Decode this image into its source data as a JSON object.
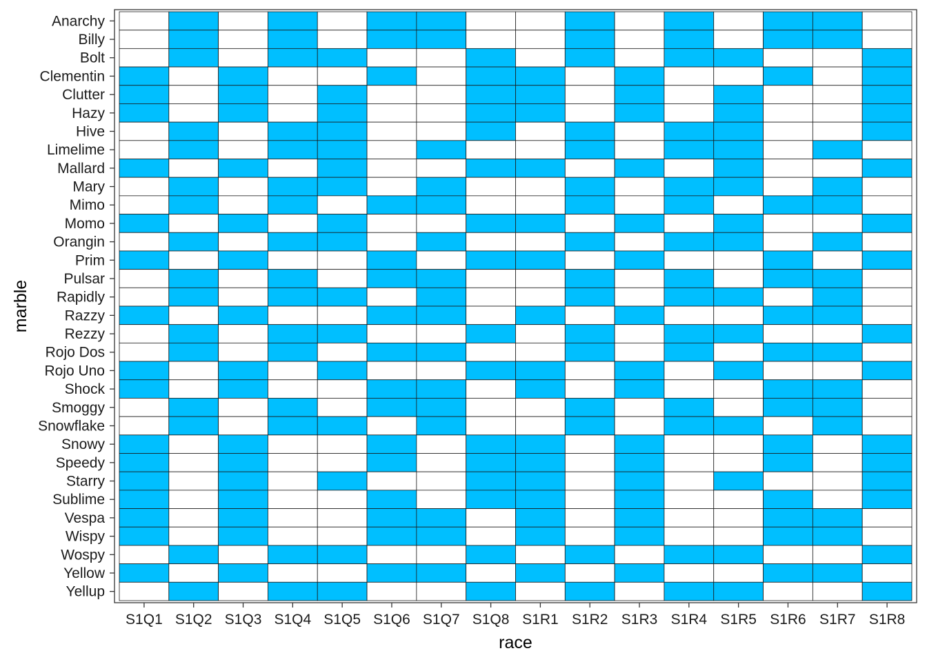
{
  "chart_data": {
    "type": "heatmap",
    "xlabel": "race",
    "ylabel": "marble",
    "colors": {
      "filled": "#00BFFF",
      "empty": "#FFFFFF",
      "cell_border": "#1a1a1a",
      "panel_border": "#333333"
    },
    "value_legend": {
      "1": "filled",
      "0": "empty"
    },
    "x_categories": [
      "S1Q1",
      "S1Q2",
      "S1Q3",
      "S1Q4",
      "S1Q5",
      "S1Q6",
      "S1Q7",
      "S1Q8",
      "S1R1",
      "S1R2",
      "S1R3",
      "S1R4",
      "S1R5",
      "S1R6",
      "S1R7",
      "S1R8"
    ],
    "y_categories": [
      "Anarchy",
      "Billy",
      "Bolt",
      "Clementin",
      "Clutter",
      "Hazy",
      "Hive",
      "Limelime",
      "Mallard",
      "Mary",
      "Mimo",
      "Momo",
      "Orangin",
      "Prim",
      "Pulsar",
      "Rapidly",
      "Razzy",
      "Rezzy",
      "Rojo Dos",
      "Rojo Uno",
      "Shock",
      "Smoggy",
      "Snowflake",
      "Snowy",
      "Speedy",
      "Starry",
      "Sublime",
      "Vespa",
      "Wispy",
      "Wospy",
      "Yellow",
      "Yellup"
    ],
    "values": [
      [
        0,
        1,
        0,
        1,
        0,
        1,
        1,
        0,
        0,
        1,
        0,
        1,
        0,
        1,
        1,
        0
      ],
      [
        0,
        1,
        0,
        1,
        0,
        1,
        1,
        0,
        0,
        1,
        0,
        1,
        0,
        1,
        1,
        0
      ],
      [
        0,
        1,
        0,
        1,
        1,
        0,
        0,
        1,
        0,
        1,
        0,
        1,
        1,
        0,
        0,
        1
      ],
      [
        1,
        0,
        1,
        0,
        0,
        1,
        0,
        1,
        1,
        0,
        1,
        0,
        0,
        1,
        0,
        1
      ],
      [
        1,
        0,
        1,
        0,
        1,
        0,
        0,
        1,
        1,
        0,
        1,
        0,
        1,
        0,
        0,
        1
      ],
      [
        1,
        0,
        1,
        0,
        1,
        0,
        0,
        1,
        1,
        0,
        1,
        0,
        1,
        0,
        0,
        1
      ],
      [
        0,
        1,
        0,
        1,
        1,
        0,
        0,
        1,
        0,
        1,
        0,
        1,
        1,
        0,
        0,
        1
      ],
      [
        0,
        1,
        0,
        1,
        1,
        0,
        1,
        0,
        0,
        1,
        0,
        1,
        1,
        0,
        1,
        0
      ],
      [
        1,
        0,
        1,
        0,
        1,
        0,
        0,
        1,
        1,
        0,
        1,
        0,
        1,
        0,
        0,
        1
      ],
      [
        0,
        1,
        0,
        1,
        1,
        0,
        1,
        0,
        0,
        1,
        0,
        1,
        1,
        0,
        1,
        0
      ],
      [
        0,
        1,
        0,
        1,
        0,
        1,
        1,
        0,
        0,
        1,
        0,
        1,
        0,
        1,
        1,
        0
      ],
      [
        1,
        0,
        1,
        0,
        1,
        0,
        0,
        1,
        1,
        0,
        1,
        0,
        1,
        0,
        0,
        1
      ],
      [
        0,
        1,
        0,
        1,
        1,
        0,
        1,
        0,
        0,
        1,
        0,
        1,
        1,
        0,
        1,
        0
      ],
      [
        1,
        0,
        1,
        0,
        0,
        1,
        0,
        1,
        1,
        0,
        1,
        0,
        0,
        1,
        0,
        1
      ],
      [
        0,
        1,
        0,
        1,
        0,
        1,
        1,
        0,
        0,
        1,
        0,
        1,
        0,
        1,
        1,
        0
      ],
      [
        0,
        1,
        0,
        1,
        1,
        0,
        1,
        0,
        0,
        1,
        0,
        1,
        1,
        0,
        1,
        0
      ],
      [
        1,
        0,
        1,
        0,
        0,
        1,
        1,
        0,
        1,
        0,
        1,
        0,
        0,
        1,
        1,
        0
      ],
      [
        0,
        1,
        0,
        1,
        1,
        0,
        0,
        1,
        0,
        1,
        0,
        1,
        1,
        0,
        0,
        1
      ],
      [
        0,
        1,
        0,
        1,
        0,
        1,
        1,
        0,
        0,
        1,
        0,
        1,
        0,
        1,
        1,
        0
      ],
      [
        1,
        0,
        1,
        0,
        1,
        0,
        0,
        1,
        1,
        0,
        1,
        0,
        1,
        0,
        0,
        1
      ],
      [
        1,
        0,
        1,
        0,
        0,
        1,
        1,
        0,
        1,
        0,
        1,
        0,
        0,
        1,
        1,
        0
      ],
      [
        0,
        1,
        0,
        1,
        0,
        1,
        1,
        0,
        0,
        1,
        0,
        1,
        0,
        1,
        1,
        0
      ],
      [
        0,
        1,
        0,
        1,
        1,
        0,
        1,
        0,
        0,
        1,
        0,
        1,
        1,
        0,
        1,
        0
      ],
      [
        1,
        0,
        1,
        0,
        0,
        1,
        0,
        1,
        1,
        0,
        1,
        0,
        0,
        1,
        0,
        1
      ],
      [
        1,
        0,
        1,
        0,
        0,
        1,
        0,
        1,
        1,
        0,
        1,
        0,
        0,
        1,
        0,
        1
      ],
      [
        1,
        0,
        1,
        0,
        1,
        0,
        0,
        1,
        1,
        0,
        1,
        0,
        1,
        0,
        0,
        1
      ],
      [
        1,
        0,
        1,
        0,
        0,
        1,
        0,
        1,
        1,
        0,
        1,
        0,
        0,
        1,
        0,
        1
      ],
      [
        1,
        0,
        1,
        0,
        0,
        1,
        1,
        0,
        1,
        0,
        1,
        0,
        0,
        1,
        1,
        0
      ],
      [
        1,
        0,
        1,
        0,
        0,
        1,
        1,
        0,
        1,
        0,
        1,
        0,
        0,
        1,
        1,
        0
      ],
      [
        0,
        1,
        0,
        1,
        1,
        0,
        0,
        1,
        0,
        1,
        0,
        1,
        1,
        0,
        0,
        1
      ],
      [
        1,
        0,
        1,
        0,
        0,
        1,
        1,
        0,
        1,
        0,
        1,
        0,
        0,
        1,
        1,
        0
      ],
      [
        0,
        1,
        0,
        1,
        1,
        0,
        0,
        1,
        0,
        1,
        0,
        1,
        1,
        0,
        0,
        1
      ]
    ]
  }
}
